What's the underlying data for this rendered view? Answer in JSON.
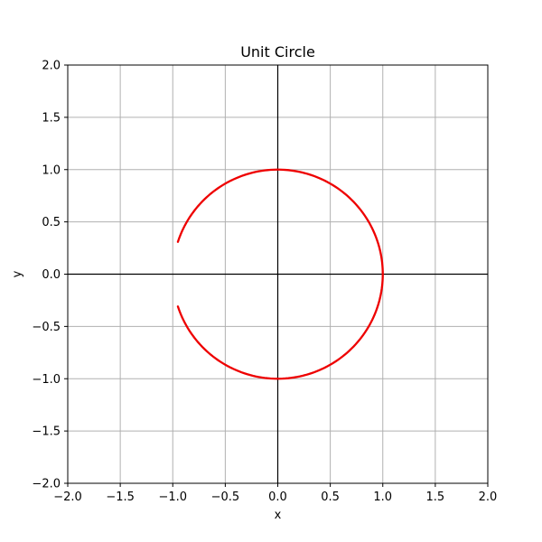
{
  "chart_data": {
    "type": "line",
    "title": "Unit Circle",
    "xlabel": "x",
    "ylabel": "y",
    "xlim": [
      -2.0,
      2.0
    ],
    "ylim": [
      -2.0,
      2.0
    ],
    "grid": true,
    "xticks": [
      -2.0,
      -1.5,
      -1.0,
      -0.5,
      0.0,
      0.5,
      1.0,
      1.5,
      2.0
    ],
    "xtick_labels": [
      "−2.0",
      "−1.5",
      "−1.0",
      "−0.5",
      "0.0",
      "0.5",
      "1.0",
      "1.5",
      "2.0"
    ],
    "yticks": [
      -2.0,
      -1.5,
      -1.0,
      -0.5,
      0.0,
      0.5,
      1.0,
      1.5,
      2.0
    ],
    "ytick_labels": [
      "−2.0",
      "−1.5",
      "−1.0",
      "−0.5",
      "0.0",
      "0.5",
      "1.0",
      "1.5",
      "2.0"
    ],
    "reference_lines": {
      "x": 0.0,
      "y": 0.0,
      "color": "#000000"
    },
    "series": [
      {
        "color": "#ee0000",
        "shape": "circle-arc",
        "radius": 1.0,
        "center": [
          0.0,
          0.0
        ],
        "start_angle_deg": -162,
        "end_angle_deg": 162
      }
    ]
  }
}
